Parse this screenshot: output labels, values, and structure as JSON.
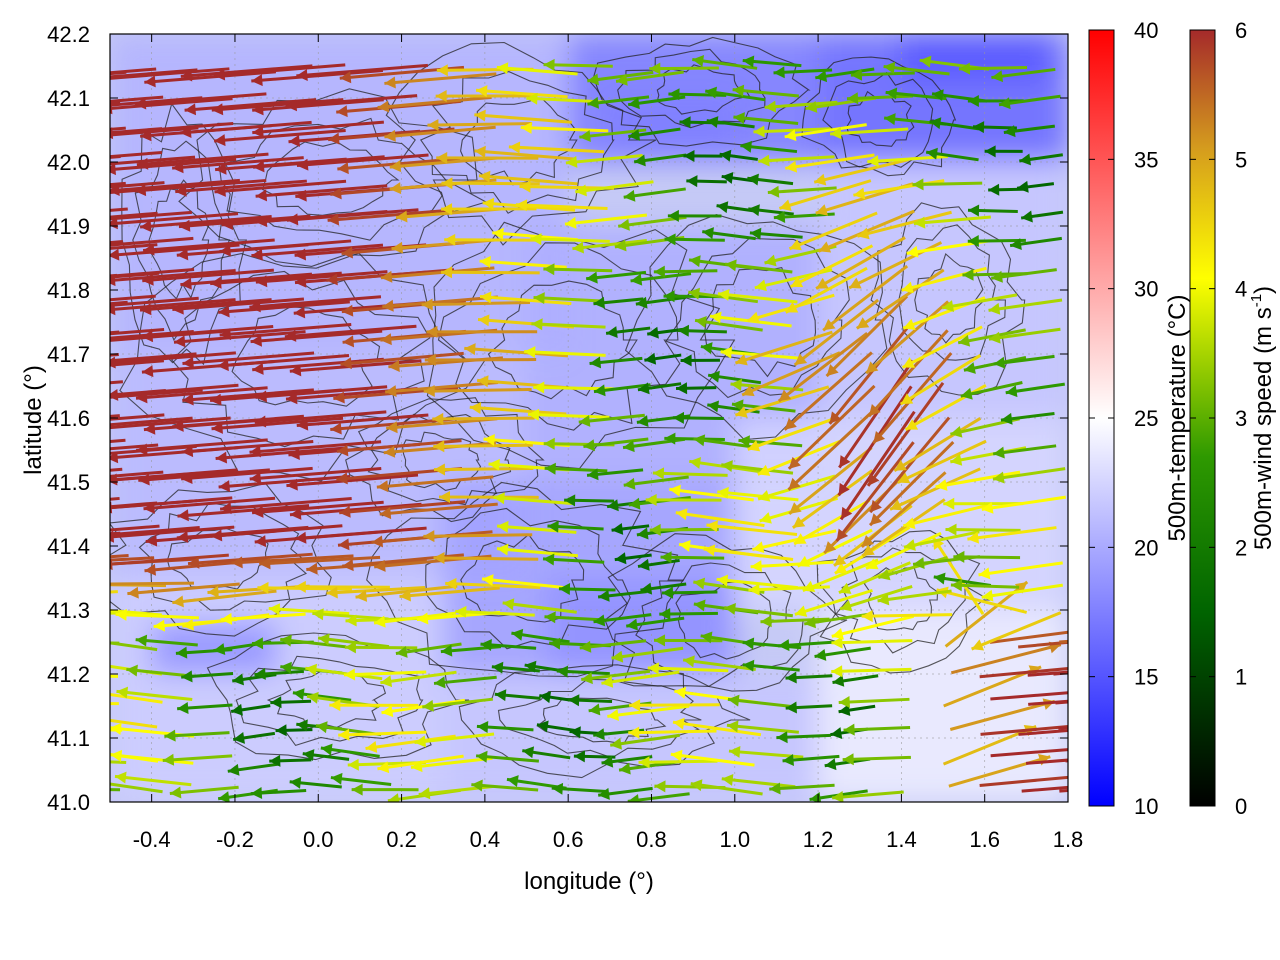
{
  "chart_data": {
    "type": "heatmap",
    "subtype": "temperature field with wind vectors and terrain contours",
    "xlabel": "longitude (°)",
    "ylabel": "latitude (°)",
    "xlim": [
      -0.5,
      1.8
    ],
    "ylim": [
      41.0,
      42.2
    ],
    "x_ticks": [
      "-0.4",
      "-0.2",
      "0.0",
      "0.2",
      "0.4",
      "0.6",
      "0.8",
      "1.0",
      "1.2",
      "1.4",
      "1.6",
      "1.8"
    ],
    "x_tick_values": [
      -0.4,
      -0.2,
      0.0,
      0.2,
      0.4,
      0.6,
      0.8,
      1.0,
      1.2,
      1.4,
      1.6,
      1.8
    ],
    "y_ticks": [
      "41.0",
      "41.1",
      "41.2",
      "41.3",
      "41.4",
      "41.5",
      "41.6",
      "41.7",
      "41.8",
      "41.9",
      "42.0",
      "42.1",
      "42.2"
    ],
    "y_tick_values": [
      41.0,
      41.1,
      41.2,
      41.3,
      41.4,
      41.5,
      41.6,
      41.7,
      41.8,
      41.9,
      42.0,
      42.1,
      42.2
    ],
    "grid": true,
    "temperature_colorbar": {
      "label": "500m-temperature (°C)",
      "range": [
        10,
        40
      ],
      "ticks": [
        "10",
        "15",
        "20",
        "25",
        "30",
        "35",
        "40"
      ],
      "tick_values": [
        10,
        15,
        20,
        25,
        30,
        35,
        40
      ],
      "colors": [
        "#0000ff",
        "#ffffff",
        "#ff0000"
      ]
    },
    "wind_colorbar": {
      "label_prefix": "500m-wind speed (m s",
      "label_sup": "-1",
      "label_suffix": ")",
      "range": [
        0,
        6
      ],
      "ticks": [
        "0",
        "1",
        "2",
        "3",
        "4",
        "5",
        "6"
      ],
      "tick_values": [
        0,
        1,
        2,
        3,
        4,
        5,
        6
      ],
      "colors": [
        "#000000",
        "#006400",
        "#2e9900",
        "#ffff00",
        "#d49a1e",
        "#a52a2a"
      ]
    },
    "wind_regions": [
      {
        "region": "west and north-west (lon -0.5 to 0.6, lat 41.3 to 42.2)",
        "direction": "westward",
        "speed_ms": 6
      },
      {
        "region": "north-east (lon 1.2 to 1.6, lat 41.4 to 41.9)",
        "direction": "south-westward",
        "speed_ms": 6
      },
      {
        "region": "south-east coast (lon 1.5 to 1.8, lat 41.0 to 41.3)",
        "direction": "eastward",
        "speed_ms": 6
      },
      {
        "region": "central interior (lon 0.4 to 1.2, lat 41.1 to 41.8)",
        "direction": "variable",
        "speed_ms": 2.5
      }
    ],
    "temperature_regions": [
      {
        "region": "north-east corner (lon 1.4 to 1.8, lat 42.1 to 42.2)",
        "temperature_c": 16
      },
      {
        "region": "north (lon 0.7 to 1.2, lat 41.9 to 42.1)",
        "temperature_c": 18
      },
      {
        "region": "central interior",
        "temperature_c": 20
      },
      {
        "region": "east and south coast",
        "temperature_c": 23
      }
    ]
  }
}
